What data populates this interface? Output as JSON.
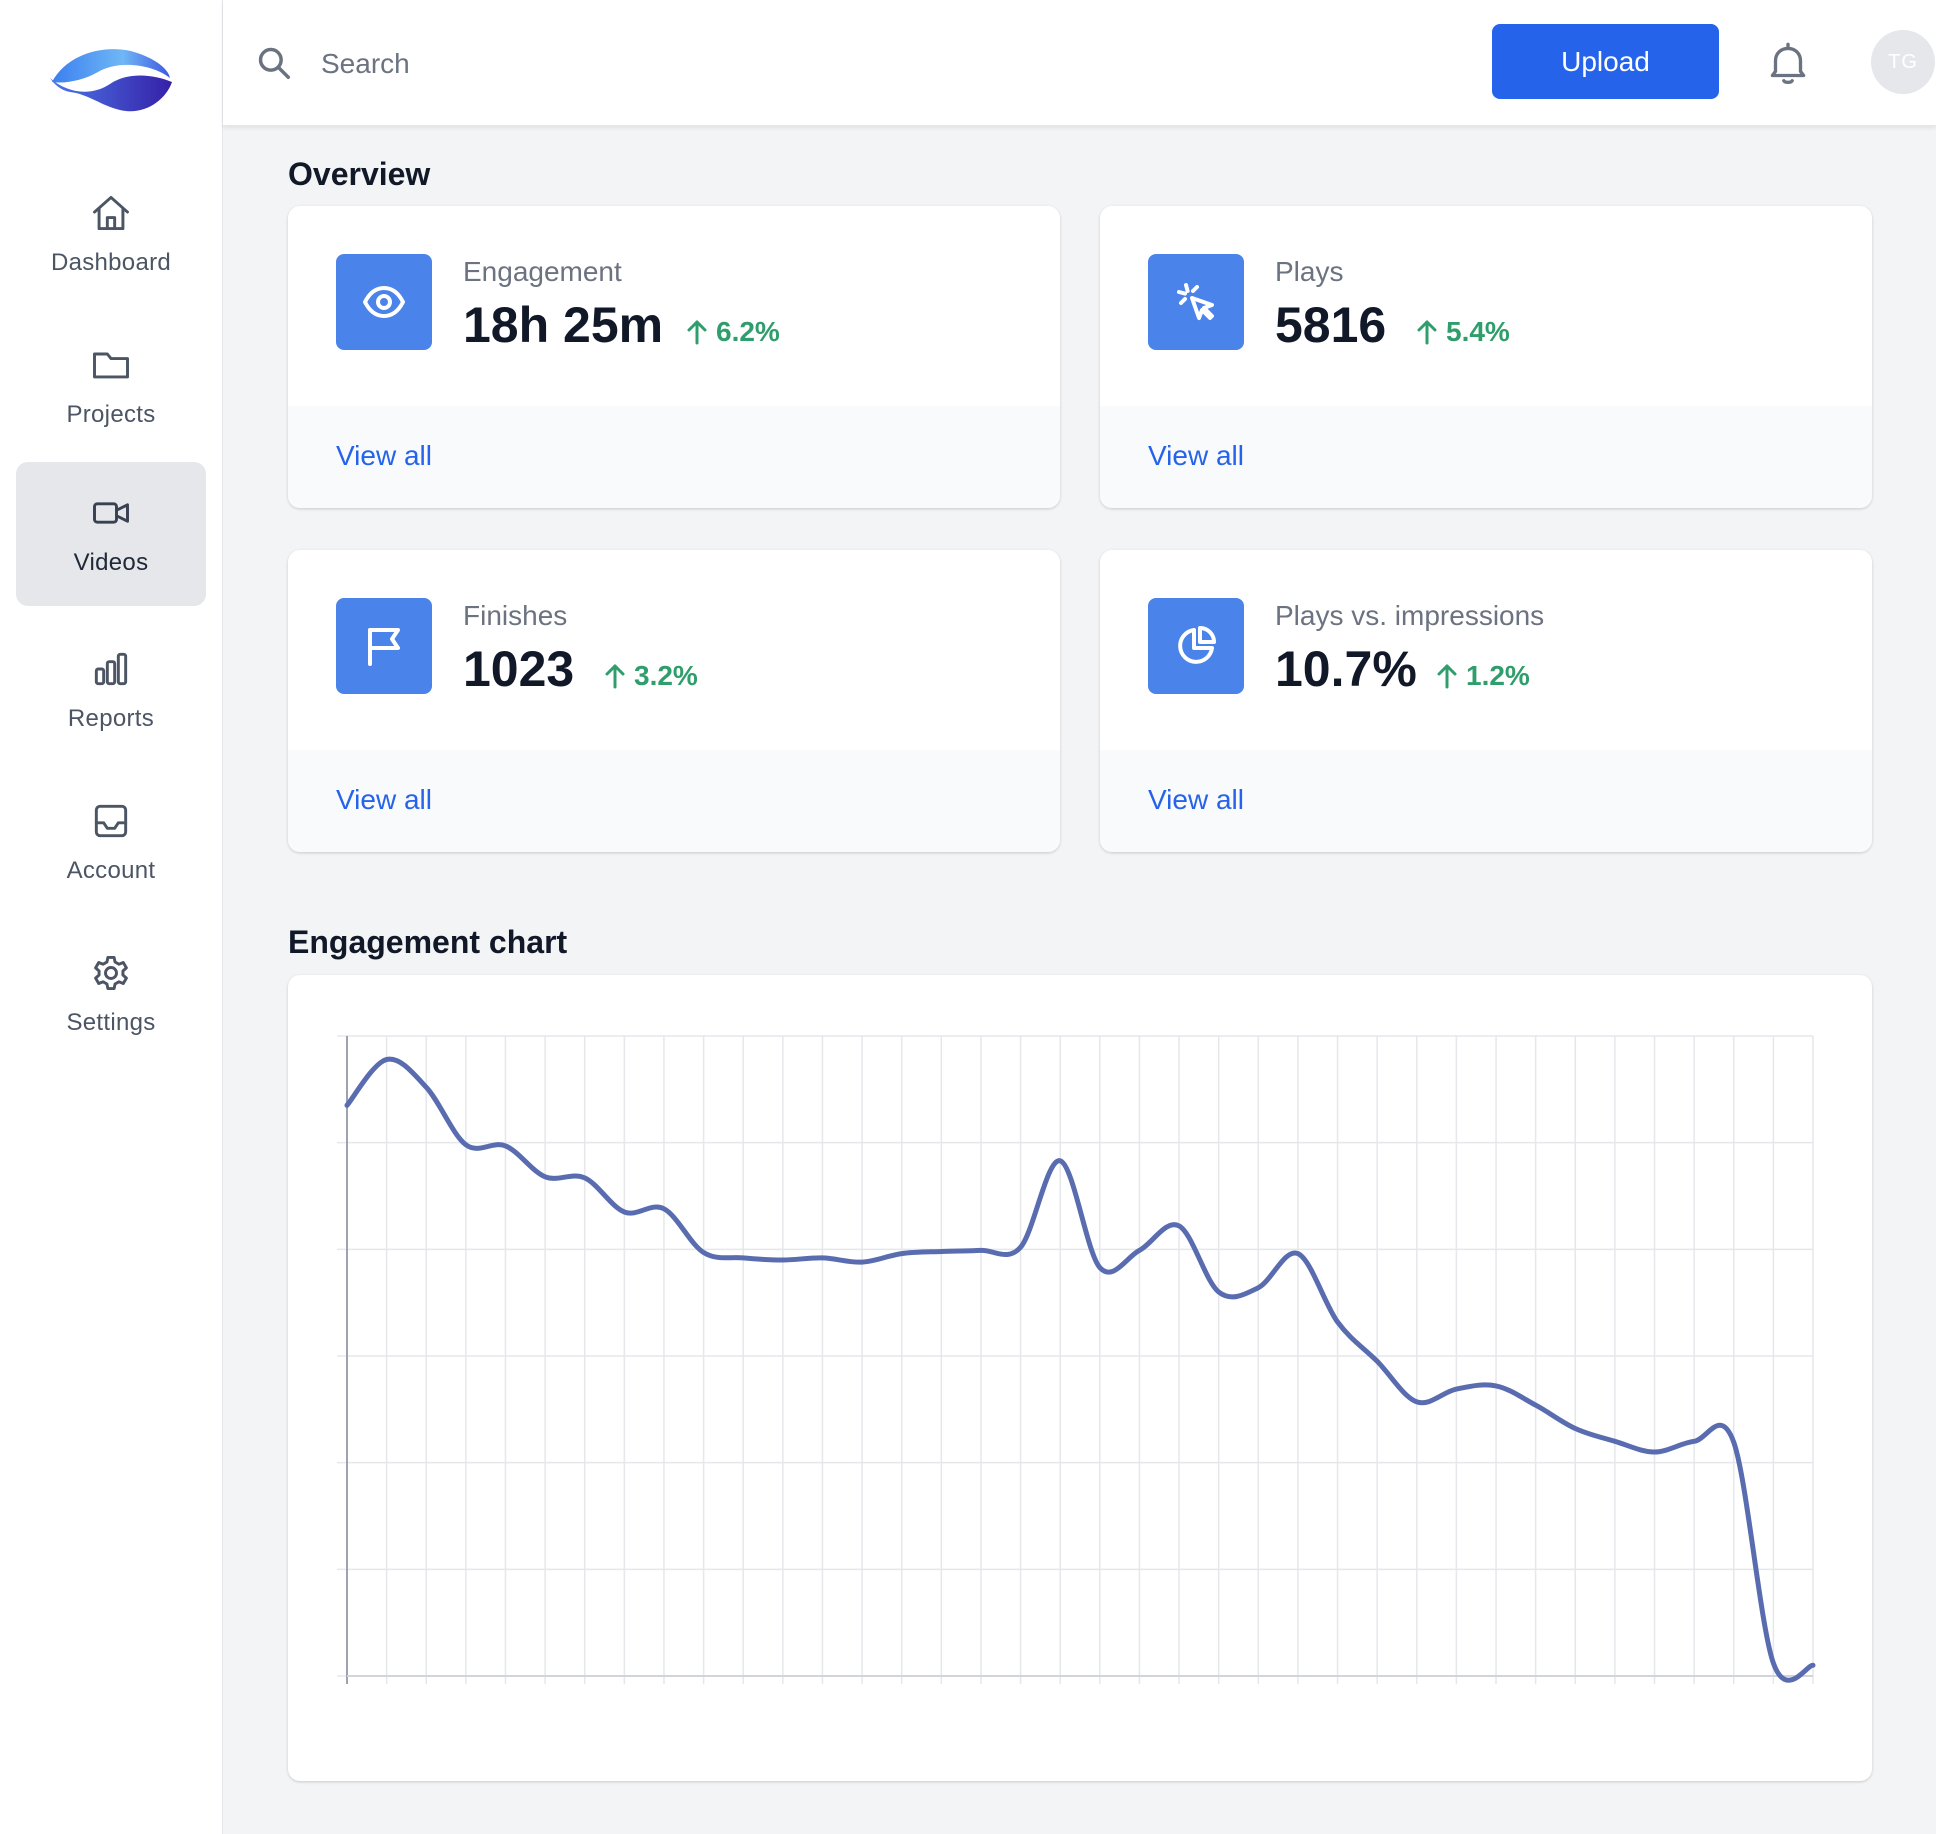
{
  "app": {
    "brand_colors": {
      "accent": "#2563eb",
      "icon_bg": "#4a83ea",
      "positive": "#2f9e6c",
      "line": "#5a6cb0"
    }
  },
  "sidebar": {
    "items": [
      {
        "label": "Dashboard",
        "icon": "home-icon",
        "active": false
      },
      {
        "label": "Projects",
        "icon": "folder-icon",
        "active": false
      },
      {
        "label": "Videos",
        "icon": "video-camera-icon",
        "active": true
      },
      {
        "label": "Reports",
        "icon": "bar-chart-icon",
        "active": false
      },
      {
        "label": "Account",
        "icon": "inbox-icon",
        "active": false
      },
      {
        "label": "Settings",
        "icon": "gear-icon",
        "active": false
      }
    ]
  },
  "header": {
    "search_placeholder": "Search",
    "upload_label": "Upload",
    "avatar_initials": "TG"
  },
  "overview": {
    "title": "Overview",
    "cards": [
      {
        "label": "Engagement",
        "value": "18h 25m",
        "change": "6.2%",
        "link": "View all",
        "icon": "eye-icon"
      },
      {
        "label": "Plays",
        "value": "5816",
        "change": "5.4%",
        "link": "View all",
        "icon": "cursor-click-icon"
      },
      {
        "label": "Finishes",
        "value": "1023",
        "change": "3.2%",
        "link": "View all",
        "icon": "flag-icon"
      },
      {
        "label": "Plays vs. impressions",
        "value": "10.7%",
        "change": "1.2%",
        "link": "View all",
        "icon": "pie-chart-icon"
      }
    ]
  },
  "engagement_chart": {
    "title": "Engagement chart"
  },
  "chart_data": {
    "type": "line",
    "title": "",
    "xlabel": "",
    "ylabel": "",
    "grid": true,
    "x": [
      0,
      1,
      2,
      3,
      4,
      5,
      6,
      7,
      8,
      9,
      10,
      11,
      12,
      13,
      14,
      15,
      16,
      17,
      18,
      19,
      20,
      21,
      22,
      23,
      24,
      25,
      26,
      27,
      28,
      29,
      30,
      31,
      32,
      33,
      34,
      35,
      36,
      37
    ],
    "ylim": [
      0,
      6
    ],
    "series": [
      {
        "values": [
          5.35,
          5.78,
          5.52,
          4.98,
          4.97,
          4.68,
          4.67,
          4.35,
          4.38,
          3.97,
          3.92,
          3.9,
          3.92,
          3.88,
          3.96,
          3.98,
          3.99,
          4.02,
          4.83,
          3.83,
          3.99,
          4.22,
          3.6,
          3.64,
          3.96,
          3.32,
          2.95,
          2.57,
          2.69,
          2.72,
          2.54,
          2.32,
          2.2,
          2.1,
          2.2,
          2.19,
          0.12,
          0.1
        ]
      }
    ]
  }
}
